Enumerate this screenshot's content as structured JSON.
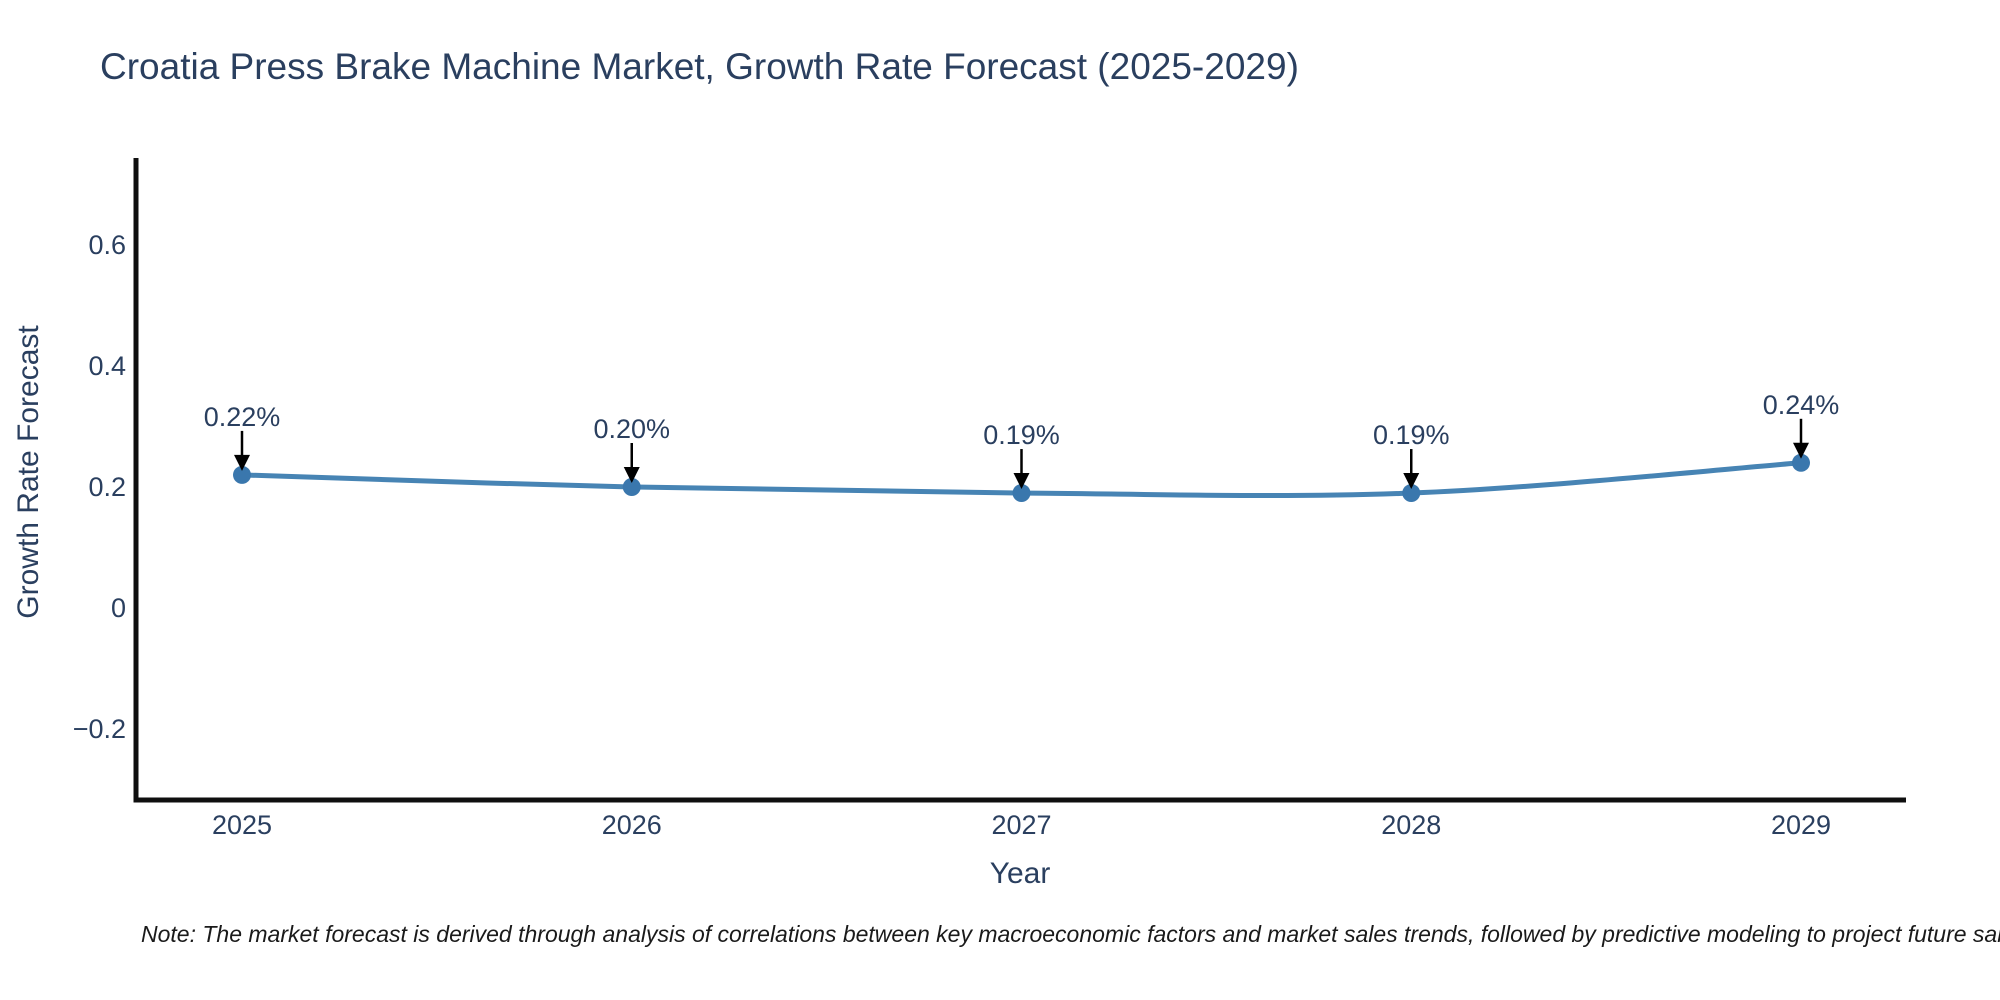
{
  "title": "Croatia Press Brake Machine Market, Growth Rate Forecast (2025-2029)",
  "note": "Note: The market forecast is derived through analysis of correlations between key macroeconomic factors and market sales trends, followed by predictive modeling to project future sales.",
  "chart_data": {
    "type": "line",
    "title": "Croatia Press Brake Machine Market, Growth Rate Forecast (2025-2029)",
    "x": [
      2025,
      2026,
      2027,
      2028,
      2029
    ],
    "values": [
      0.22,
      0.2,
      0.19,
      0.19,
      0.24
    ],
    "point_labels": [
      "0.22%",
      "0.20%",
      "0.19%",
      "0.19%",
      "0.24%"
    ],
    "xlabel": "Year",
    "ylabel": "Growth Rate Forecast",
    "xtick_labels": [
      "2025",
      "2026",
      "2027",
      "2028",
      "2029"
    ],
    "yticks": [
      0.6,
      0.4,
      0.2,
      0,
      -0.2
    ],
    "ytick_labels": [
      "0.6",
      "0.4",
      "0.2",
      "0",
      "−0.2"
    ],
    "ylim": [
      -0.32,
      0.74
    ],
    "grid": false,
    "legend": "none",
    "line_color": "#4784b4",
    "marker_color": "#3a77ad",
    "axis_line_color": "#0f0f0f",
    "annotation_arrow_color": "#000000",
    "text_color": "#2a3f5f"
  }
}
